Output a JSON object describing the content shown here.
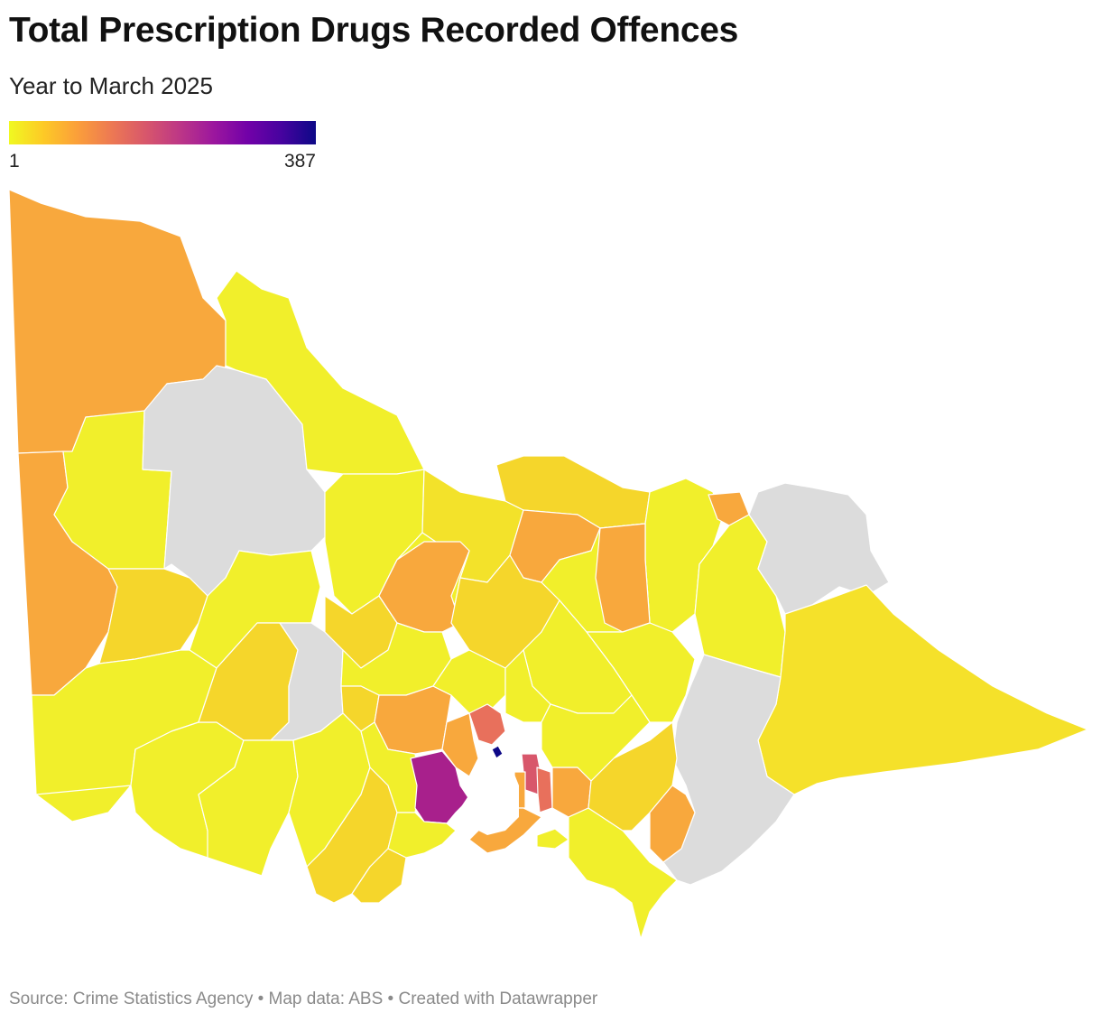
{
  "header": {
    "title": "Total Prescription Drugs Recorded Offences",
    "subtitle": "Year to March 2025"
  },
  "legend": {
    "min_label": "1",
    "max_label": "387",
    "gradient": [
      "#f0f921",
      "#fdca26",
      "#fb9f3a",
      "#ed7953",
      "#d8576b",
      "#bd3786",
      "#9c179e",
      "#7201a8",
      "#46039f",
      "#0d0887"
    ]
  },
  "colors": {
    "no_data": "#dcdcdc",
    "border": "#ffffff",
    "water": "#ffffff"
  },
  "footer": {
    "source": "Source: Crime Statistics Agency • Map data: ABS • Created with Datawrapper"
  }
}
